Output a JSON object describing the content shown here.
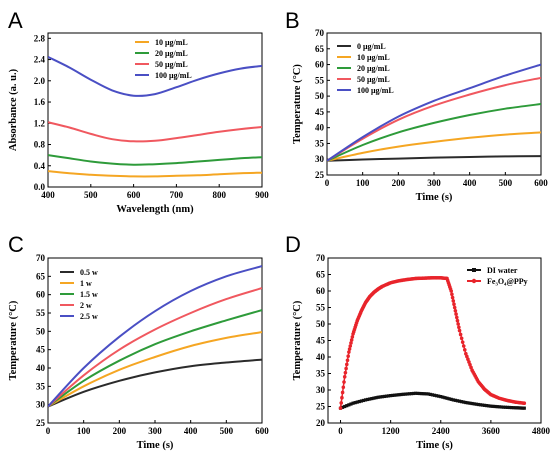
{
  "chart_data": [
    {
      "panel": "A",
      "type": "line",
      "xlabel": "Wavelength (nm)",
      "ylabel": "Absorbance (a. u.)",
      "xlim": [
        400,
        900
      ],
      "ylim": [
        0,
        2.9
      ],
      "xticks": [
        400,
        500,
        600,
        700,
        800,
        900
      ],
      "yticks": [
        0.0,
        0.4,
        0.8,
        1.2,
        1.6,
        2.0,
        2.4,
        2.8
      ],
      "legend_position": "top-right",
      "x": [
        400,
        450,
        500,
        550,
        600,
        650,
        700,
        750,
        800,
        850,
        900
      ],
      "series": [
        {
          "name": "10 μg/mL",
          "color": "#f5a623",
          "values": [
            0.3,
            0.26,
            0.23,
            0.21,
            0.2,
            0.2,
            0.21,
            0.22,
            0.24,
            0.26,
            0.27
          ]
        },
        {
          "name": "20 μg/mL",
          "color": "#2e9b3a",
          "values": [
            0.6,
            0.54,
            0.48,
            0.44,
            0.42,
            0.43,
            0.45,
            0.48,
            0.51,
            0.54,
            0.56
          ]
        },
        {
          "name": "50 μg/mL",
          "color": "#f0585f",
          "values": [
            1.22,
            1.12,
            1.0,
            0.9,
            0.86,
            0.87,
            0.92,
            0.98,
            1.04,
            1.09,
            1.13
          ]
        },
        {
          "name": "100 μg/mL",
          "color": "#4a4fc4",
          "values": [
            2.45,
            2.25,
            2.02,
            1.82,
            1.72,
            1.75,
            1.88,
            2.02,
            2.14,
            2.23,
            2.28
          ]
        }
      ]
    },
    {
      "panel": "B",
      "type": "line",
      "xlabel": "Time (s)",
      "ylabel": "Temperature (°C)",
      "xlim": [
        0,
        600
      ],
      "ylim": [
        25,
        70
      ],
      "xticks": [
        0,
        100,
        200,
        300,
        400,
        500,
        600
      ],
      "yticks": [
        25,
        30,
        35,
        40,
        45,
        50,
        55,
        60,
        65,
        70
      ],
      "legend_position": "top-left",
      "x": [
        0,
        100,
        200,
        300,
        400,
        500,
        600
      ],
      "series": [
        {
          "name": "0 μg/mL",
          "color": "#2b2b2b",
          "values": [
            29.5,
            29.9,
            30.2,
            30.5,
            30.7,
            30.9,
            31.0
          ]
        },
        {
          "name": "10 μg/mL",
          "color": "#f5a623",
          "values": [
            29.5,
            32.0,
            34.0,
            35.5,
            36.8,
            37.8,
            38.5
          ]
        },
        {
          "name": "20 μg/mL",
          "color": "#2e9b3a",
          "values": [
            29.5,
            34.5,
            38.5,
            41.5,
            44.0,
            46.0,
            47.5
          ]
        },
        {
          "name": "50 μg/mL",
          "color": "#f0585f",
          "values": [
            29.5,
            36.5,
            42.5,
            47.0,
            50.5,
            53.5,
            55.8
          ]
        },
        {
          "name": "100 μg/mL",
          "color": "#4a4fc4",
          "values": [
            29.5,
            37.0,
            43.5,
            48.5,
            52.5,
            56.5,
            60.0
          ]
        }
      ]
    },
    {
      "panel": "C",
      "type": "line",
      "xlabel": "Time (s)",
      "ylabel": "Temperature (°C)",
      "xlim": [
        0,
        600
      ],
      "ylim": [
        25,
        70
      ],
      "xticks": [
        0,
        100,
        200,
        300,
        400,
        500,
        600
      ],
      "yticks": [
        25,
        30,
        35,
        40,
        45,
        50,
        55,
        60,
        65,
        70
      ],
      "legend_position": "top-left",
      "x": [
        0,
        100,
        200,
        300,
        400,
        500,
        600
      ],
      "series": [
        {
          "name": "0.5 w",
          "color": "#2b2b2b",
          "values": [
            29.5,
            33.5,
            36.5,
            38.8,
            40.5,
            41.5,
            42.3
          ]
        },
        {
          "name": "1 w",
          "color": "#f5a623",
          "values": [
            29.5,
            35.0,
            39.5,
            43.0,
            46.0,
            48.2,
            49.8
          ]
        },
        {
          "name": "1.5 w",
          "color": "#2e9b3a",
          "values": [
            29.5,
            36.5,
            42.0,
            46.5,
            50.0,
            53.0,
            55.8
          ]
        },
        {
          "name": "2 w",
          "color": "#f0585f",
          "values": [
            29.5,
            38.0,
            45.0,
            50.5,
            55.0,
            58.8,
            61.8
          ]
        },
        {
          "name": "2.5 w",
          "color": "#4a4fc4",
          "values": [
            29.5,
            40.0,
            48.5,
            55.5,
            61.0,
            65.0,
            67.8
          ]
        }
      ]
    },
    {
      "panel": "D",
      "type": "scatter",
      "xlabel": "Time (s)",
      "ylabel": "Temperature (°C)",
      "xlim": [
        -300,
        4800
      ],
      "ylim": [
        20,
        70
      ],
      "xticks": [
        0,
        1200,
        2400,
        3600,
        4800
      ],
      "yticks": [
        20,
        25,
        30,
        35,
        40,
        45,
        50,
        55,
        60,
        65,
        70
      ],
      "legend_position": "top-right",
      "series": [
        {
          "name": "DI water",
          "color": "#111111",
          "marker": "square",
          "x": [
            0,
            300,
            600,
            900,
            1200,
            1500,
            1800,
            2100,
            2400,
            2700,
            3000,
            3300,
            3600,
            3900,
            4200,
            4400
          ],
          "values": [
            24.5,
            26.0,
            27.0,
            27.8,
            28.3,
            28.7,
            29.0,
            28.8,
            28.0,
            27.0,
            26.2,
            25.6,
            25.1,
            24.8,
            24.6,
            24.5
          ]
        },
        {
          "name": "Fe₃O₄@PPy",
          "color": "#e8242b",
          "marker": "circle",
          "x": [
            0,
            100,
            200,
            300,
            400,
            500,
            600,
            700,
            800,
            900,
            1000,
            1200,
            1400,
            1600,
            1800,
            2000,
            2200,
            2400,
            2550,
            2650,
            2750,
            2850,
            3000,
            3150,
            3300,
            3450,
            3600,
            3800,
            4000,
            4200,
            4400
          ],
          "values": [
            24.5,
            34.0,
            41.5,
            47.0,
            51.0,
            54.0,
            56.5,
            58.3,
            59.6,
            60.6,
            61.4,
            62.5,
            63.1,
            63.5,
            63.8,
            63.9,
            64.0,
            64.0,
            63.8,
            60.0,
            54.0,
            48.0,
            41.0,
            36.0,
            32.5,
            30.2,
            28.6,
            27.5,
            26.8,
            26.3,
            26.0
          ]
        }
      ]
    }
  ]
}
